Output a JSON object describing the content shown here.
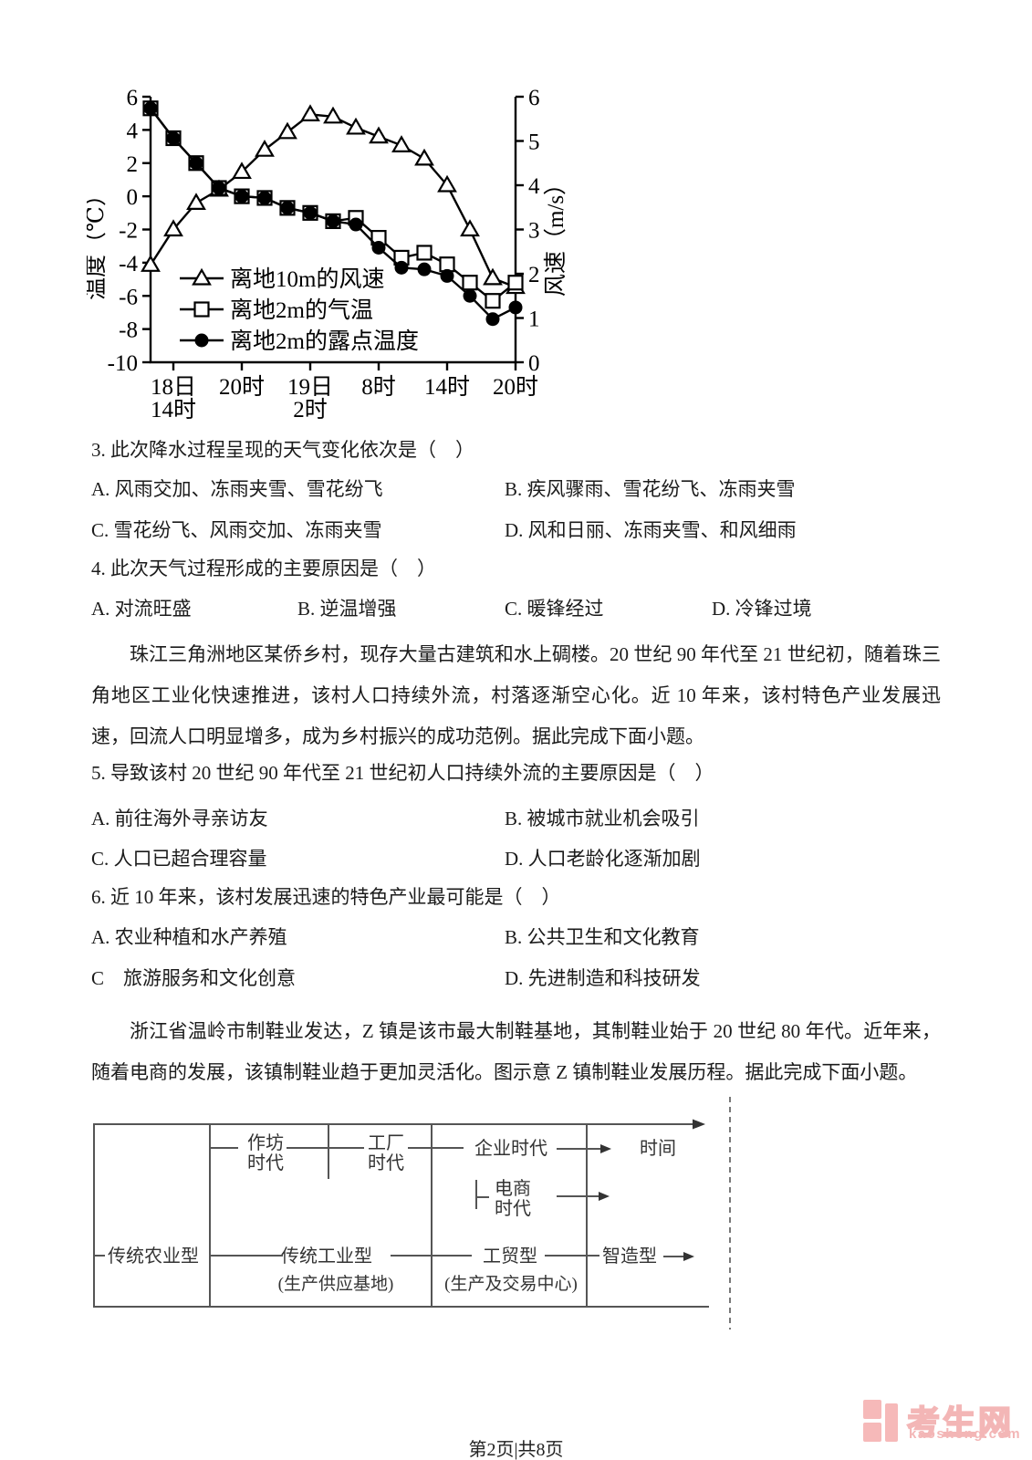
{
  "chart_data": {
    "type": "line",
    "title": "",
    "x_ticks": [
      [
        "18日",
        "14时"
      ],
      [
        "20时"
      ],
      [
        "19日",
        "2时"
      ],
      [
        "8时"
      ],
      [
        "14时"
      ],
      [
        "20时"
      ]
    ],
    "tick_indices": [
      1,
      4,
      7,
      10,
      13,
      16
    ],
    "left_axis": {
      "label": "温度（℃）",
      "min": -10,
      "max": 6,
      "tick_step": 2
    },
    "right_axis": {
      "label": "风速（m/s）",
      "min": 0,
      "max": 6,
      "tick_step": 1
    },
    "grid": false,
    "legend_position": "inside-lower-left",
    "series": [
      {
        "name": "离地10m的风速",
        "marker": "triangle",
        "axis": "right",
        "values": [
          2.2,
          3.0,
          3.6,
          3.9,
          4.3,
          4.8,
          5.2,
          5.6,
          5.55,
          5.3,
          5.1,
          4.9,
          4.6,
          4.0,
          3.0,
          1.9,
          1.7
        ]
      },
      {
        "name": "离地2m的气温",
        "marker": "square",
        "axis": "left",
        "values": [
          5.3,
          3.5,
          2.0,
          0.5,
          0.0,
          -0.1,
          -0.7,
          -1.0,
          -1.5,
          -1.3,
          -2.5,
          -3.7,
          -3.4,
          -4.1,
          -5.2,
          -6.3,
          -5.2
        ]
      },
      {
        "name": "离地2m的露点温度",
        "marker": "circle",
        "axis": "left",
        "values": [
          5.3,
          3.5,
          2.0,
          0.5,
          0.0,
          -0.1,
          -0.7,
          -1.0,
          -1.5,
          -1.7,
          -3.1,
          -4.3,
          -4.4,
          -4.8,
          -6.0,
          -7.4,
          -6.7
        ]
      }
    ]
  },
  "questions": [
    {
      "stem": "3. 此次降水过程呈现的天气变化依次是（　）",
      "options": [
        "A. 风雨交加、冻雨夹雪、雪花纷飞",
        "B. 疾风骤雨、雪花纷飞、冻雨夹雪",
        "C. 雪花纷飞、风雨交加、冻雨夹雪",
        "D. 风和日丽、冻雨夹雪、和风细雨"
      ]
    },
    {
      "stem": "4. 此次天气过程形成的主要原因是（　）",
      "options": [
        "A. 对流旺盛",
        "B. 逆温增强",
        "C. 暖锋经过",
        "D. 冷锋过境"
      ]
    },
    {
      "stem": "5. 导致该村 20 世纪 90 年代至 21 世纪初人口持续外流的主要原因是（　）",
      "options": [
        "A. 前往海外寻亲访友",
        "B. 被城市就业机会吸引",
        "C. 人口已超合理容量",
        "D. 人口老龄化逐渐加剧"
      ]
    },
    {
      "stem": "6. 近 10 年来，该村发展迅速的特色产业最可能是（　）",
      "options": [
        "A. 农业种植和水产养殖",
        "B. 公共卫生和文化教育",
        "C　旅游服务和文化创意",
        "D. 先进制造和科技研发"
      ]
    }
  ],
  "passages": [
    {
      "text": "珠江三角洲地区某侨乡村，现存大量古建筑和水上碉楼。20 世纪 90 年代至 21 世纪初，随着珠三角地区工业化快速推进，该村人口持续外流，村落逐渐空心化。近 10 年来，该村特色产业发展迅速，回流人口明显增多，成为乡村振兴的成功范例。据此完成下面小题。"
    },
    {
      "text": "浙江省温岭市制鞋业发达，Z 镇是该市最大制鞋基地，其制鞋业始于 20 世纪 80 年代。近年来，随着电商的发展，该镇制鞋业趋于更加灵活化。图示意 Z 镇制鞋业发展历程。据此完成下面小题。"
    }
  ],
  "diagram": {
    "timeline_label": "时间",
    "eras": [
      {
        "lines": [
          "作坊",
          "时代"
        ]
      },
      {
        "lines": [
          "工厂",
          "时代"
        ]
      },
      {
        "lines": [
          "企业时代"
        ]
      },
      {
        "lines": [
          "电商",
          "时代"
        ]
      }
    ],
    "stages": [
      {
        "name": "传统农业型",
        "sub": ""
      },
      {
        "name": "传统工业型",
        "sub": "(生产供应基地)"
      },
      {
        "name": "工贸型",
        "sub": "(生产及交易中心)"
      },
      {
        "name": "智造型",
        "sub": ""
      }
    ]
  },
  "footer": {
    "page_text": "第2页|共8页"
  },
  "watermark": {
    "brand": "考生网",
    "domain": "kaosheng.com",
    "color": "#f3b6b6"
  }
}
